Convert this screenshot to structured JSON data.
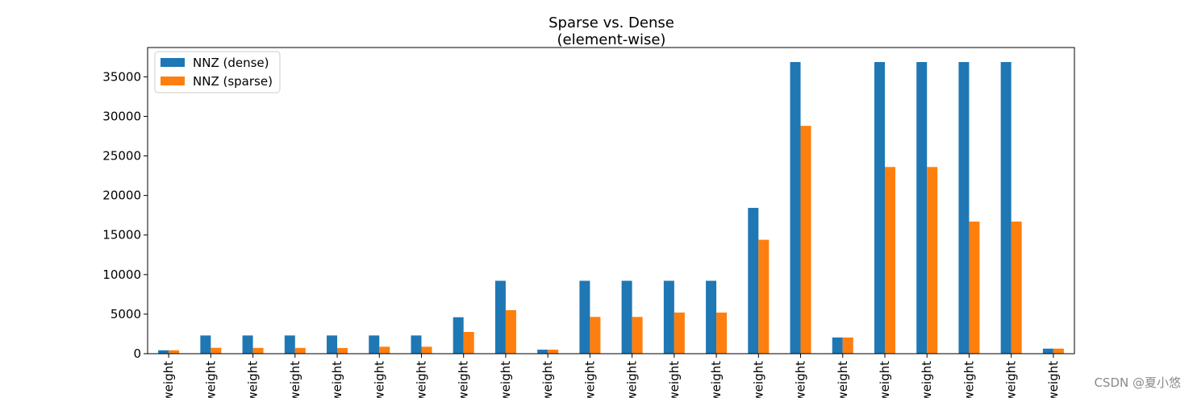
{
  "chart_data": {
    "type": "bar",
    "title": "Sparse vs. Dense",
    "subtitle": "(element-wise)",
    "categories": [
      "weight",
      "weight",
      "weight",
      "weight",
      "weight",
      "weight",
      "weight",
      "weight",
      "weight",
      "weight",
      "weight",
      "weight",
      "weight",
      "weight",
      "weight",
      "weight",
      "weight",
      "weight",
      "weight",
      "weight",
      "weight",
      "weight"
    ],
    "series": [
      {
        "name": "NNZ (dense)",
        "color": "#1f77b4",
        "values": [
          432,
          2304,
          2304,
          2304,
          2304,
          2304,
          2304,
          4608,
          9216,
          512,
          9216,
          9216,
          9216,
          9216,
          18432,
          36864,
          2048,
          36864,
          36864,
          36864,
          36864,
          640
        ]
      },
      {
        "name": "NNZ (sparse)",
        "color": "#ff7f0e",
        "values": [
          432,
          750,
          730,
          730,
          720,
          880,
          880,
          2750,
          5500,
          512,
          4650,
          4650,
          5200,
          5200,
          14400,
          28800,
          2048,
          23600,
          23600,
          16700,
          16700,
          640
        ]
      }
    ],
    "yticks": [
      0,
      5000,
      10000,
      15000,
      20000,
      25000,
      30000,
      35000
    ],
    "ylim": [
      0,
      38700
    ],
    "xlabel": "",
    "ylabel": "",
    "grid": false,
    "legend_position": "upper-left"
  },
  "watermark": "CSDN @夏小悠"
}
